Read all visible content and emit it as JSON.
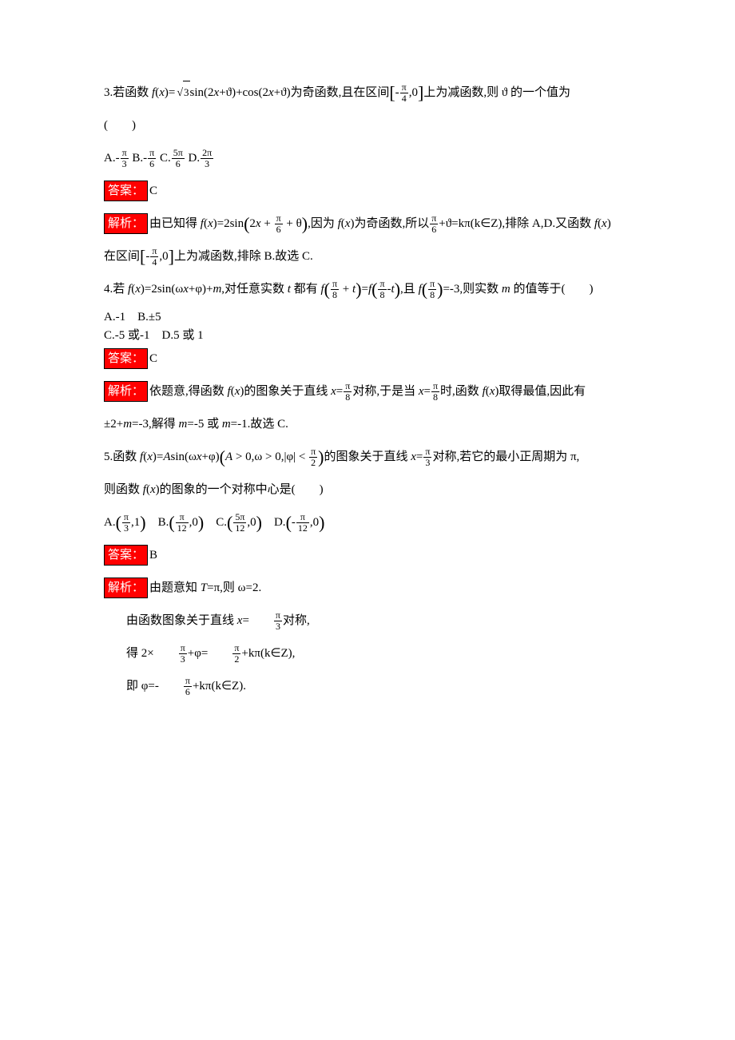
{
  "q3": {
    "stem_a": "3.若函数 ",
    "fx": "f",
    "x_it": "x",
    "eq": "(",
    "close": ")=",
    "sqrt3": "3",
    "sin_part": "sin(2",
    "xplus": "+ϑ)+cos(2",
    "xplus2": "+ϑ)为奇函数,且在区间",
    "interval_open": "[",
    "interval_neg": "-",
    "pi": "π",
    "four": "4",
    "interval_mid": ",0",
    "interval_close": "]",
    "tail": "上为减函数,则 ϑ 的一个值为",
    "paren": "(　　)",
    "optA": "A.-",
    "a_num": "π",
    "a_den": "3",
    "optB": " B.-",
    "b_num": "π",
    "b_den": "6",
    "optC": " C.",
    "c_num": "5π",
    "c_den": "6",
    "optD": " D.",
    "d_num": "2π",
    "d_den": "3",
    "ans_label": "答案：",
    "ans": "C",
    "expl_label": "解析：",
    "expl_a": "由已知得 ",
    "expl_fx": "f",
    "expl_x": "x",
    "expl_eq2sin": ")=2sin",
    "inner_2x": "2",
    "inner_plus": " + ",
    "inner_pi": "π",
    "inner_6": "6",
    "inner_theta": " + θ",
    "expl_b": ",因为 ",
    "expl_c": ")为奇函数,所以",
    "expl_pi6": "π",
    "expl_6": "6",
    "expl_d": "+ϑ=kπ(k∈Z),排除 A,D.又函数 ",
    "expl_e": ")",
    "expl_f": "在区间",
    "expl_g": "上为减函数,排除 B.故选 C."
  },
  "q4": {
    "stem_a": "4.若 ",
    "fx": "f",
    "x_it": "x",
    "eq": ")=2sin(ω",
    "plusphi": "+φ)+",
    "m_it": "m",
    "mid": ",对任意实数 ",
    "t_it": "t",
    "mid2": " 都有 ",
    "pi": "π",
    "eight": "8",
    "plus_t": " + ",
    "minus_t": "-",
    "eqf": "=",
    "mid3": ",且 ",
    "eq_neg3": "=-3,则实数 ",
    "tail": " 的值等于(　　)",
    "optA": "A.-1　B.±5",
    "optC": "C.-5 或-1　D.5 或 1",
    "ans_label": "答案：",
    "ans": "C",
    "expl_label": "解析：",
    "expl_a": "依题意,得函数 ",
    "expl_b": ")的图象关于直线 ",
    "xeq": "=",
    "expl_c": "对称,于是当 ",
    "expl_d": "时,函数 ",
    "expl_e": ")取得最值,因此有",
    "expl_f": "±2+",
    "expl_g": "=-3,解得 ",
    "expl_h": "=-5 或 ",
    "expl_i": "=-1.故选 C."
  },
  "q5": {
    "stem_a": "5.函数 ",
    "fx": "f",
    "x_it": "x",
    "eq": ")=",
    "A_it": "A",
    "sin": "sin(ω",
    "plusphi": "+φ)",
    "cond_A": "A",
    "cond_gt0": " > 0,ω > 0,|φ| < ",
    "pi": "π",
    "two": "2",
    "mid": "的图象关于直线 ",
    "xeq": "=",
    "three": "3",
    "mid2": "对称,若它的最小正周期为 π,",
    "line2": "则函数 ",
    "line2b": ")的图象的一个对称中心是(　　)",
    "optA": "A.",
    "a_n1": "π",
    "a_d1": "3",
    "a_y": ",1",
    "optB": "　B.",
    "b_n1": "π",
    "b_d1": "12",
    "b_y": ",0",
    "optC": "　C.",
    "c_n1": "5π",
    "c_d1": "12",
    "c_y": ",0",
    "optD": "　D.",
    "d_neg": "-",
    "d_n1": "π",
    "d_d1": "12",
    "d_y": ",0",
    "ans_label": "答案：",
    "ans": "B",
    "expl_label": "解析：",
    "expl_a": "由题意知 ",
    "T_it": "T",
    "expl_b": "=π,则 ω=2.",
    "l1a": "由函数图象关于直线 ",
    "l1b": "=　　",
    "l1c": "对称,",
    "l2a": "得 2×　　",
    "l2b": "+φ=　　",
    "l2c": "+kπ(k∈Z),",
    "l3a": "即 φ=-　　",
    "l3b": "+kπ(k∈Z).",
    "six": "6"
  }
}
